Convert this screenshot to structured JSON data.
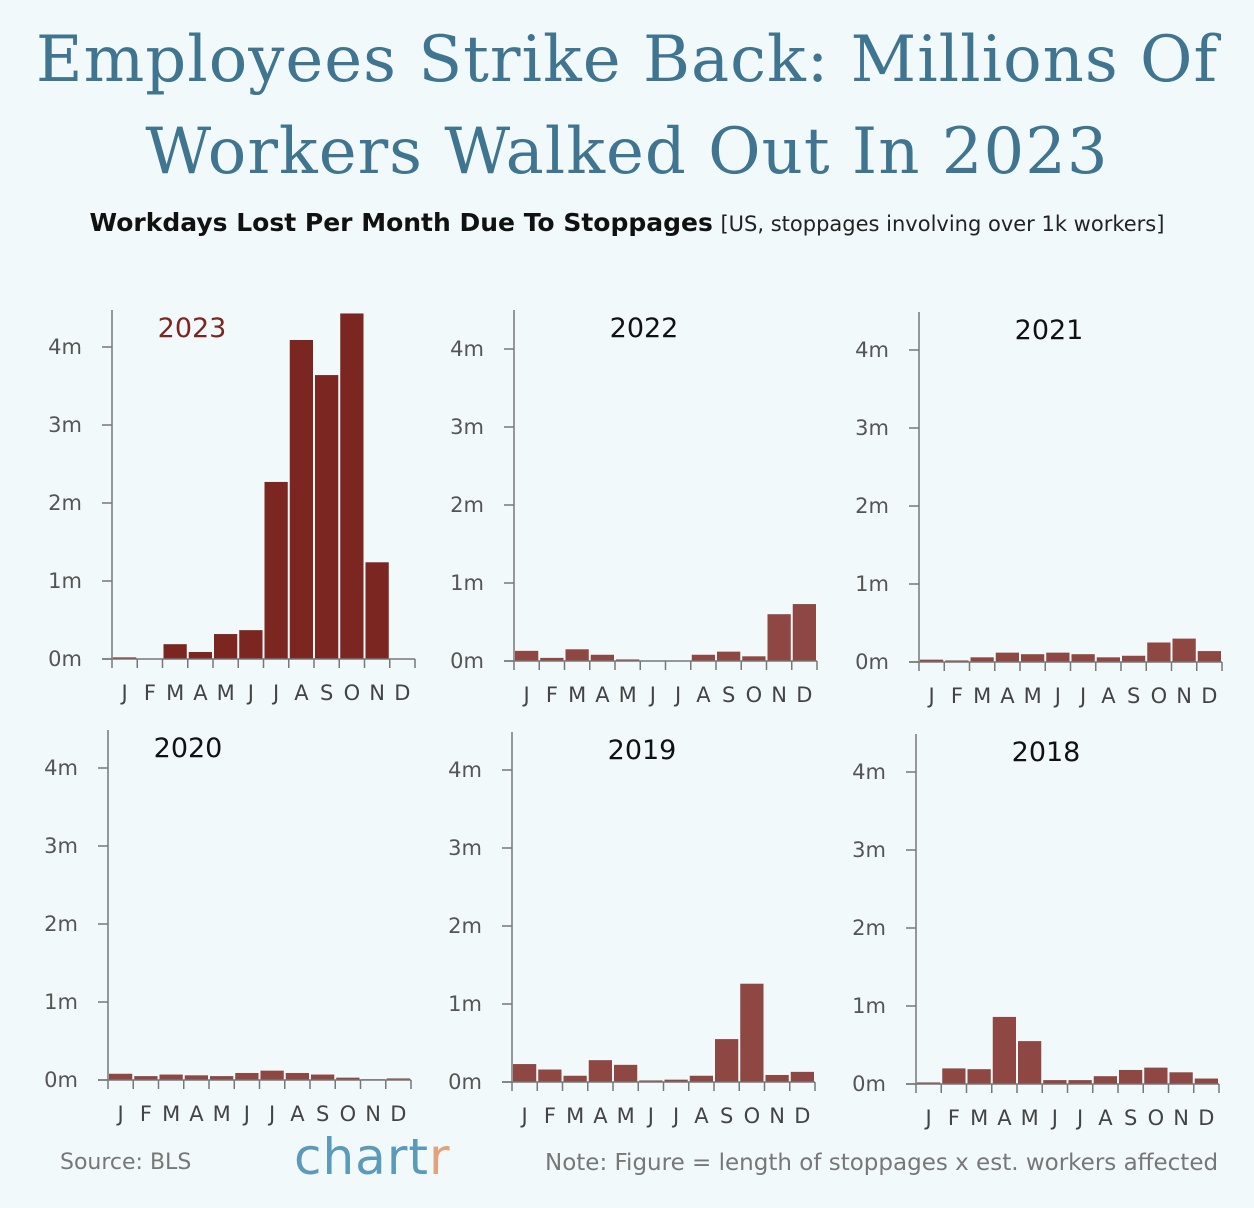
{
  "title": "Employees Strike Back: Millions Of Workers Walked Out In 2023",
  "subtitle": {
    "main": "Workdays Lost Per Month Due To Stoppages",
    "note": "[US, stoppages involving over 1k workers]"
  },
  "footer": {
    "source": "Source: BLS",
    "logo_text": "chart",
    "logo_accent": "r",
    "note": "Note: Figure = length of stoppages x est. workers affected"
  },
  "colors": {
    "background": "#f2f9fb",
    "title": "#3f7590",
    "highlight_bar": "#7b2620",
    "bar": "#8e4743",
    "highlight_label": "#7b2620",
    "logo": "#5b9ab8",
    "logo_accent": "#e2a27a"
  },
  "chart_data": [
    {
      "type": "bar",
      "title": "2023",
      "highlight": true,
      "categories": [
        "J",
        "F",
        "M",
        "A",
        "M",
        "J",
        "J",
        "A",
        "S",
        "O",
        "N",
        "D"
      ],
      "values": [
        0.02,
        0,
        0.19,
        0.09,
        0.32,
        0.37,
        2.27,
        4.09,
        3.64,
        4.43,
        1.24,
        0
      ],
      "ylabel": "",
      "ylim": [
        0,
        4.4
      ],
      "yticks": [
        "0m",
        "1m",
        "2m",
        "3m",
        "4m"
      ],
      "unit": "millions of workdays"
    },
    {
      "type": "bar",
      "title": "2022",
      "categories": [
        "J",
        "F",
        "M",
        "A",
        "M",
        "J",
        "J",
        "A",
        "S",
        "O",
        "N",
        "D"
      ],
      "values": [
        0.13,
        0.04,
        0.15,
        0.08,
        0.02,
        0,
        0,
        0.08,
        0.12,
        0.06,
        0.6,
        0.73
      ],
      "ylim": [
        0,
        4.4
      ],
      "yticks": [
        "0m",
        "1m",
        "2m",
        "3m",
        "4m"
      ]
    },
    {
      "type": "bar",
      "title": "2021",
      "categories": [
        "J",
        "F",
        "M",
        "A",
        "M",
        "J",
        "J",
        "A",
        "S",
        "O",
        "N",
        "D"
      ],
      "values": [
        0.03,
        0.02,
        0.06,
        0.12,
        0.1,
        0.12,
        0.1,
        0.06,
        0.08,
        0.25,
        0.3,
        0.14
      ],
      "ylim": [
        0,
        4.4
      ],
      "yticks": [
        "0m",
        "1m",
        "2m",
        "3m",
        "4m"
      ]
    },
    {
      "type": "bar",
      "title": "2020",
      "categories": [
        "J",
        "F",
        "M",
        "A",
        "M",
        "J",
        "J",
        "A",
        "S",
        "O",
        "N",
        "D"
      ],
      "values": [
        0.08,
        0.05,
        0.07,
        0.06,
        0.05,
        0.09,
        0.12,
        0.09,
        0.07,
        0.03,
        0.01,
        0.02
      ],
      "ylim": [
        0,
        4.4
      ],
      "yticks": [
        "0m",
        "1m",
        "2m",
        "3m",
        "4m"
      ]
    },
    {
      "type": "bar",
      "title": "2019",
      "categories": [
        "J",
        "F",
        "M",
        "A",
        "M",
        "J",
        "J",
        "A",
        "S",
        "O",
        "N",
        "D"
      ],
      "values": [
        0.23,
        0.16,
        0.08,
        0.28,
        0.22,
        0.02,
        0.03,
        0.08,
        0.55,
        1.26,
        0.09,
        0.13
      ],
      "ylim": [
        0,
        4.4
      ],
      "yticks": [
        "0m",
        "1m",
        "2m",
        "3m",
        "4m"
      ]
    },
    {
      "type": "bar",
      "title": "2018",
      "categories": [
        "J",
        "F",
        "M",
        "A",
        "M",
        "J",
        "J",
        "A",
        "S",
        "O",
        "N",
        "D"
      ],
      "values": [
        0.02,
        0.2,
        0.19,
        0.86,
        0.55,
        0.05,
        0.05,
        0.1,
        0.18,
        0.21,
        0.15,
        0.07
      ],
      "ylim": [
        0,
        4.4
      ],
      "yticks": [
        "0m",
        "1m",
        "2m",
        "3m",
        "4m"
      ]
    }
  ]
}
